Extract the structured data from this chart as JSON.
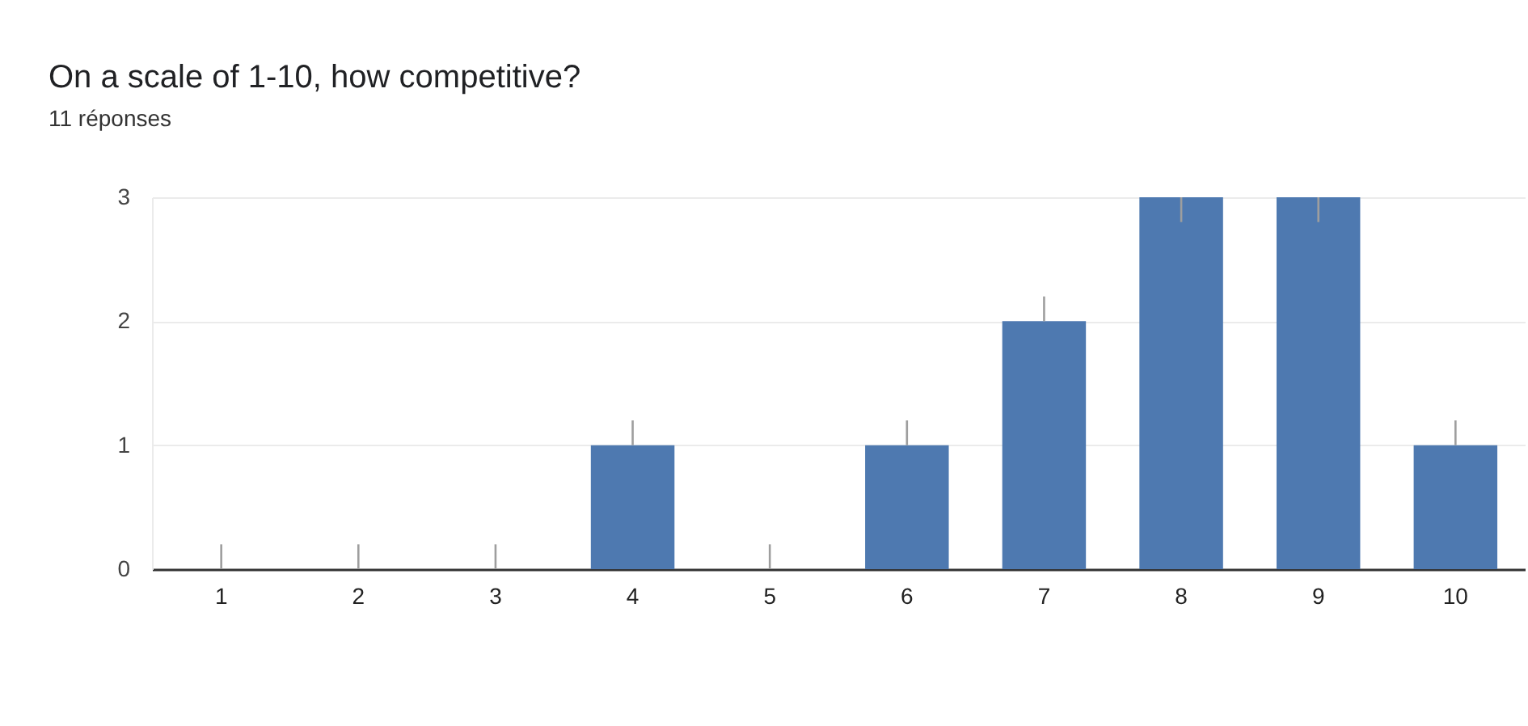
{
  "chart_data": {
    "type": "bar",
    "title": "On a scale of 1-10, how competitive?",
    "subtitle": "11 réponses",
    "categories": [
      "1",
      "2",
      "3",
      "4",
      "5",
      "6",
      "7",
      "8",
      "9",
      "10"
    ],
    "values": [
      0,
      0,
      0,
      1,
      0,
      1,
      2,
      3,
      3,
      1
    ],
    "color": "#4e79b0",
    "errors": [
      [
        0,
        0.2
      ],
      [
        0,
        0.2
      ],
      [
        0,
        0.2
      ],
      [
        1,
        1.2
      ],
      [
        0,
        0.2
      ],
      [
        1,
        1.2
      ],
      [
        2,
        2.2
      ],
      [
        2.8,
        3
      ],
      [
        2.8,
        3
      ],
      [
        1,
        1.2
      ]
    ],
    "ylim": [
      0,
      3
    ],
    "yticks": [
      0,
      1,
      2,
      3
    ],
    "grid": "y"
  }
}
